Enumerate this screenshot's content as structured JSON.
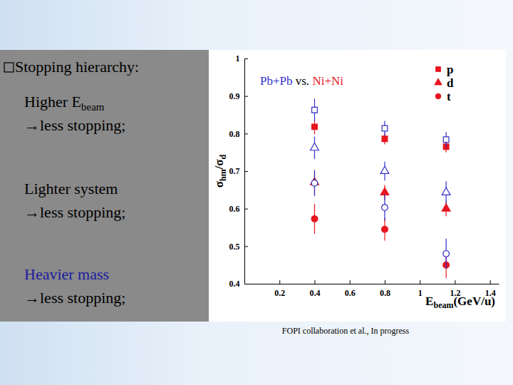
{
  "chart_data": {
    "type": "scatter",
    "title": [
      "Pb+Pb",
      "vs.",
      "Ni+Ni"
    ],
    "xlabel": [
      "E",
      "beam",
      "(GeV/u)"
    ],
    "ylabel": [
      "σ",
      "hm",
      "/σ",
      "d"
    ],
    "x": [
      0.4,
      0.8,
      1.15
    ],
    "xlim": [
      0,
      1.45
    ],
    "xticks": [
      0.2,
      0.4,
      0.6,
      0.8,
      1,
      1.2,
      1.4
    ],
    "ylim": [
      0.4,
      1
    ],
    "yticks": [
      0.4,
      0.5,
      0.6,
      0.7,
      0.8,
      0.9,
      1
    ],
    "legend": "upper right",
    "series": [
      {
        "name": "p",
        "color": "#e8141e",
        "marker": "square",
        "values": [
          0.818,
          0.786,
          0.765
        ],
        "errors": [
          0.02,
          0.015,
          0.015
        ]
      },
      {
        "name": "d",
        "color": "#e8141e",
        "marker": "triangle",
        "values": [
          0.67,
          0.643,
          0.6
        ],
        "errors": [
          0.03,
          0.02,
          0.02
        ]
      },
      {
        "name": "t",
        "color": "#e8141e",
        "marker": "circle",
        "values": [
          0.573,
          0.545,
          0.45
        ],
        "errors": [
          0.04,
          0.03,
          0.035
        ]
      },
      {
        "color": "#3030c8",
        "marker": "square-open",
        "values": [
          0.863,
          0.814,
          0.784
        ],
        "errors": [
          0.03,
          0.02,
          0.02
        ]
      },
      {
        "color": "#3030c8",
        "marker": "triangle-open",
        "values": [
          0.762,
          0.7,
          0.643
        ],
        "errors": [
          0.03,
          0.025,
          0.03
        ]
      },
      {
        "color": "#3030c8",
        "marker": "circle-open",
        "values": [
          0.668,
          0.603,
          0.48
        ],
        "errors": [
          0.035,
          0.035,
          0.04
        ]
      }
    ]
  },
  "slide": {
    "heading": "Stopping hierarchy:",
    "points": [
      {
        "label": [
          "Higher E",
          "beam"
        ],
        "effect": "→less stopping;"
      },
      {
        "label": [
          "Lighter system"
        ],
        "effect": "→less stopping;"
      },
      {
        "label": [
          "Heavier mass"
        ],
        "effect": "→less stopping;"
      }
    ],
    "caption": "FOPI collaboration et al., In progress"
  }
}
